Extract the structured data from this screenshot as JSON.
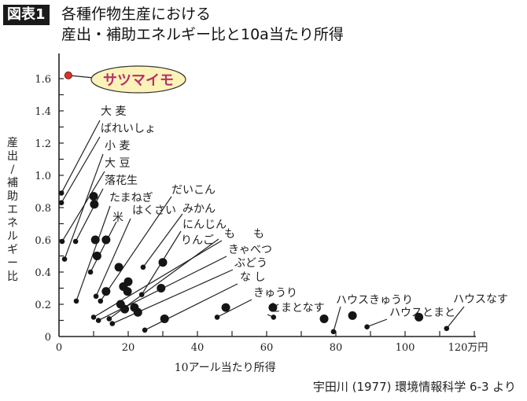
{
  "header": {
    "badge": "図表1",
    "title_line1": "各種作物生産における",
    "title_line2": "産出・補助エネルギー比と10a当たり所得"
  },
  "source": "宇田川 (1977) 環境情報科学 6-3 より",
  "chart_data": {
    "type": "scatter",
    "xlabel": "10アール当たり所得",
    "ylabel": "産出/補助エネルギー比",
    "x_unit": "万円",
    "xlim": [
      0,
      120
    ],
    "ylim": [
      0,
      1.7
    ],
    "x_ticks": [
      "0",
      "20",
      "40",
      "60",
      "80",
      "100",
      "120万円"
    ],
    "y_ticks": [
      "0",
      "0.2",
      "0.4",
      "0.6",
      "0.8",
      "1.0",
      "1.2",
      "1.4",
      "1.6"
    ],
    "grid": false,
    "highlight": {
      "label": "サツマイモ",
      "x": 2.7,
      "y": 1.62,
      "color": "#d8352a",
      "label_color": "#b8306a",
      "bubble_color": "#fbf3b8"
    },
    "points": [
      [
        0.7,
        0.89
      ],
      [
        0.7,
        0.83
      ],
      [
        0.9,
        0.59
      ],
      [
        1.6,
        0.48
      ],
      [
        4.8,
        0.59
      ],
      [
        5,
        0.22
      ],
      [
        10,
        0.87
      ],
      [
        10.2,
        0.82
      ],
      [
        10.5,
        0.6
      ],
      [
        13.6,
        0.6
      ],
      [
        11,
        0.5
      ],
      [
        9.1,
        0.4
      ],
      [
        17.3,
        0.43
      ],
      [
        10.7,
        0.25
      ],
      [
        12,
        0.22
      ],
      [
        13.6,
        0.28
      ],
      [
        20,
        0.34
      ],
      [
        18.6,
        0.31
      ],
      [
        19.8,
        0.28
      ],
      [
        24.3,
        0.43
      ],
      [
        30,
        0.46
      ],
      [
        23.9,
        0.26
      ],
      [
        29.5,
        0.3
      ],
      [
        10,
        0.12
      ],
      [
        11.4,
        0.1
      ],
      [
        17.8,
        0.2
      ],
      [
        19,
        0.17
      ],
      [
        14.5,
        0.11
      ],
      [
        15.4,
        0.08
      ],
      [
        21.8,
        0.18
      ],
      [
        22.8,
        0.15
      ],
      [
        24.8,
        0.04
      ],
      [
        30.5,
        0.11
      ],
      [
        45.7,
        0.12
      ],
      [
        48.2,
        0.18
      ],
      [
        61.8,
        0.18
      ],
      [
        62,
        0.12
      ],
      [
        76.6,
        0.11
      ],
      [
        79.3,
        0.03
      ],
      [
        84.8,
        0.13
      ],
      [
        89,
        0.06
      ],
      [
        104,
        0.12
      ],
      [
        112,
        0.05
      ]
    ],
    "large_points": [
      6,
      7,
      8,
      9,
      10,
      12,
      15,
      16,
      17,
      18,
      20,
      22,
      25,
      26,
      29,
      30,
      32,
      34,
      35,
      37,
      39,
      41
    ],
    "annotations": [
      "大 麦",
      "ばれいしょ",
      "小 麦",
      "大 豆",
      "落花生",
      "たまねぎ",
      "はくさい",
      "米",
      "だいこん",
      "みかん",
      "にんじん",
      "りんご",
      "も",
      "も",
      "きゃべつ",
      "ぶどう",
      "な し",
      "きゅうり",
      "とまとなす",
      "ハウスきゅうり",
      "ハウスとまと",
      "ハウスなす"
    ]
  }
}
